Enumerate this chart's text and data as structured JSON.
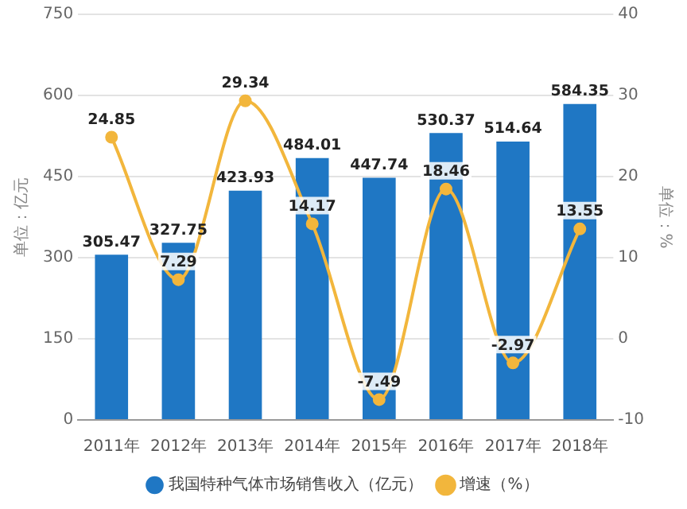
{
  "chart_data": {
    "type": "bar",
    "categories": [
      "2011年",
      "2012年",
      "2013年",
      "2014年",
      "2015年",
      "2016年",
      "2017年",
      "2018年"
    ],
    "ylabel": "单位：亿元",
    "y2label": "单位：%",
    "series": [
      {
        "name": "我国特种气体市场销售收入（亿元）",
        "color": "#1f77c4",
        "values": [
          305.47,
          327.75,
          423.93,
          484.01,
          447.74,
          530.37,
          514.64,
          584.35
        ]
      },
      {
        "name": "增速（%）",
        "type": "line",
        "axis": "y2",
        "color": "#f2b63c",
        "values": [
          24.85,
          7.29,
          29.34,
          14.17,
          -7.49,
          18.46,
          -2.97,
          13.55
        ]
      }
    ],
    "ylim": [
      0,
      750
    ],
    "yticks": [
      0,
      150,
      300,
      450,
      600,
      750
    ],
    "y2lim": [
      -10,
      40
    ],
    "y2ticks": [
      -10,
      0,
      10,
      20,
      30,
      40
    ],
    "grid": "y",
    "legend": "bottom",
    "marker": "circle",
    "data_labels": true
  }
}
